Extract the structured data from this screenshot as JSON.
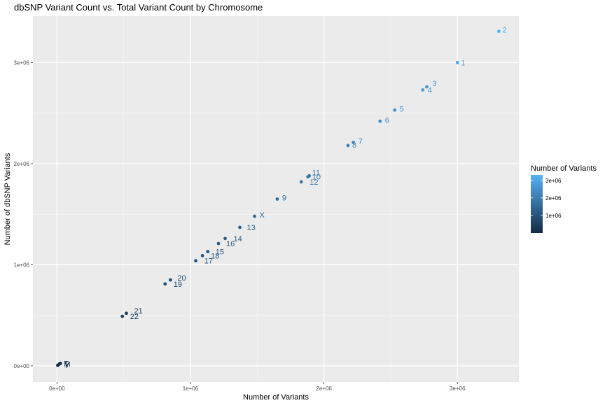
{
  "chart_data": {
    "type": "scatter",
    "title": "dbSNP Variant Count vs. Total Variant Count by Chromosome",
    "xlabel": "Number of Variants",
    "ylabel": "Number of dbSNP Variants",
    "xlim": [
      -180000,
      3460000
    ],
    "ylim": [
      -160000,
      3460000
    ],
    "x_ticks": [
      0,
      1000000,
      2000000,
      3000000
    ],
    "x_tick_labels": [
      "0e+00",
      "1e+06",
      "2e+06",
      "3e+06"
    ],
    "y_ticks": [
      0,
      1000000,
      2000000,
      3000000
    ],
    "y_tick_labels": [
      "0e+00",
      "1e+06",
      "2e+06",
      "3e+06"
    ],
    "grid": true,
    "color_scale": {
      "low": "#132B43",
      "high": "#56B1F7",
      "min": 0,
      "max": 3310000
    },
    "legend": {
      "title": "Number of Variants",
      "position": "right",
      "breaks": [
        1000000,
        2000000,
        3000000
      ],
      "labels": [
        "1e+06",
        "2e+06",
        "3e+06"
      ]
    },
    "points": [
      {
        "label": "1",
        "x": 3000000,
        "y": 3000000
      },
      {
        "label": "2",
        "x": 3310000,
        "y": 3310000
      },
      {
        "label": "3",
        "x": 2770000,
        "y": 2760000
      },
      {
        "label": "4",
        "x": 2740000,
        "y": 2730000
      },
      {
        "label": "5",
        "x": 2530000,
        "y": 2530000
      },
      {
        "label": "6",
        "x": 2420000,
        "y": 2420000
      },
      {
        "label": "7",
        "x": 2220000,
        "y": 2210000
      },
      {
        "label": "8",
        "x": 2180000,
        "y": 2180000
      },
      {
        "label": "9",
        "x": 1650000,
        "y": 1650000
      },
      {
        "label": "10",
        "x": 1880000,
        "y": 1870000
      },
      {
        "label": "11",
        "x": 1890000,
        "y": 1880000
      },
      {
        "label": "12",
        "x": 1830000,
        "y": 1820000
      },
      {
        "label": "13",
        "x": 1370000,
        "y": 1370000
      },
      {
        "label": "14",
        "x": 1260000,
        "y": 1260000
      },
      {
        "label": "15",
        "x": 1130000,
        "y": 1130000
      },
      {
        "label": "16",
        "x": 1210000,
        "y": 1210000
      },
      {
        "label": "17",
        "x": 1040000,
        "y": 1040000
      },
      {
        "label": "18",
        "x": 1090000,
        "y": 1090000
      },
      {
        "label": "19",
        "x": 810000,
        "y": 810000
      },
      {
        "label": "20",
        "x": 850000,
        "y": 850000
      },
      {
        "label": "21",
        "x": 520000,
        "y": 520000
      },
      {
        "label": "22",
        "x": 490000,
        "y": 490000
      },
      {
        "label": "X",
        "x": 1480000,
        "y": 1480000
      },
      {
        "label": "Y",
        "x": 6000,
        "y": 5000
      },
      {
        "label": "M",
        "x": 16000,
        "y": 16000
      },
      {
        "label": "T",
        "x": 26000,
        "y": 25000
      }
    ]
  }
}
